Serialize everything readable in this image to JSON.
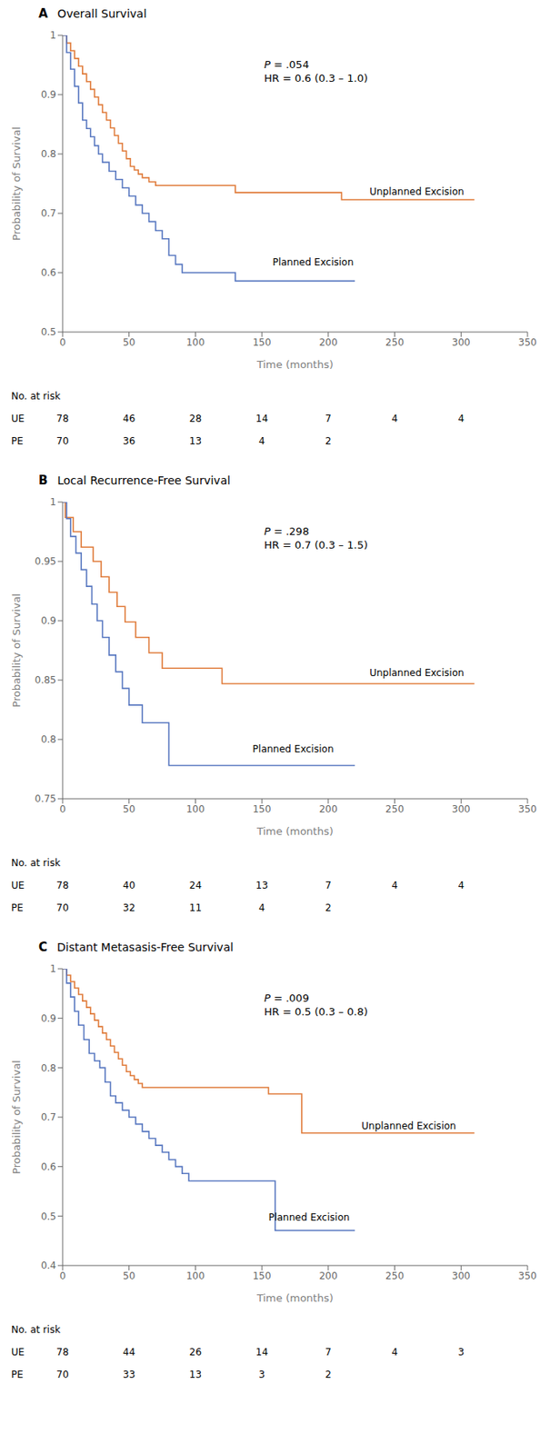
{
  "chart_data": [
    {
      "type": "line",
      "panel_label": "A",
      "title": "Overall Survival",
      "x_label": "Time (months)",
      "y_label": "Probability of Survival",
      "line_style": "step",
      "xlim": [
        0,
        350
      ],
      "xticks": [
        0,
        50,
        100,
        150,
        200,
        250,
        300,
        350
      ],
      "ylim": [
        0.5,
        1.0
      ],
      "yticks": [
        0.5,
        0.6,
        0.7,
        0.8,
        0.9,
        1
      ],
      "annotations": [
        "P = .054",
        "HR = 0.6 (0.3 – 1.0)"
      ],
      "series": [
        {
          "name": "Unplanned Excision",
          "color": "#E07B3A",
          "label_x": 228,
          "label_y": 0.737,
          "x": [
            0,
            3,
            6,
            9,
            12,
            15,
            18,
            21,
            24,
            27,
            30,
            33,
            36,
            39,
            42,
            45,
            48,
            51,
            54,
            57,
            60,
            65,
            70,
            75,
            80,
            90,
            100,
            110,
            120,
            130,
            140,
            150,
            160,
            170,
            180,
            190,
            200,
            210,
            220,
            310
          ],
          "values": [
            1.0,
            0.987,
            0.974,
            0.961,
            0.948,
            0.935,
            0.922,
            0.909,
            0.896,
            0.883,
            0.87,
            0.857,
            0.844,
            0.831,
            0.818,
            0.805,
            0.792,
            0.779,
            0.773,
            0.766,
            0.76,
            0.753,
            0.747,
            0.747,
            0.747,
            0.747,
            0.747,
            0.747,
            0.747,
            0.735,
            0.735,
            0.735,
            0.735,
            0.735,
            0.735,
            0.735,
            0.735,
            0.723,
            0.723,
            0.723
          ]
        },
        {
          "name": "Planned Excision",
          "color": "#5777C0",
          "label_x": 155,
          "label_y": 0.618,
          "x": [
            0,
            3,
            6,
            9,
            12,
            15,
            18,
            21,
            24,
            27,
            30,
            35,
            40,
            45,
            50,
            55,
            60,
            65,
            70,
            75,
            80,
            85,
            90,
            100,
            110,
            120,
            130,
            220
          ],
          "values": [
            1.0,
            0.971,
            0.943,
            0.914,
            0.886,
            0.857,
            0.843,
            0.829,
            0.814,
            0.8,
            0.786,
            0.771,
            0.757,
            0.743,
            0.729,
            0.714,
            0.7,
            0.686,
            0.671,
            0.657,
            0.629,
            0.614,
            0.6,
            0.6,
            0.6,
            0.6,
            0.586,
            0.586
          ]
        }
      ],
      "risk_table": {
        "title": "No. at risk",
        "x": [
          0,
          50,
          100,
          150,
          200,
          250,
          300
        ],
        "rows": [
          {
            "name": "UE",
            "values": [
              78,
              46,
              28,
              14,
              7,
              4,
              4
            ]
          },
          {
            "name": "PE",
            "values": [
              70,
              36,
              13,
              4,
              2,
              null,
              null
            ]
          }
        ]
      }
    },
    {
      "type": "line",
      "panel_label": "B",
      "title": "Local Recurrence-Free Survival",
      "x_label": "Time (months)",
      "y_label": "Probability of Survival",
      "line_style": "step",
      "xlim": [
        0,
        350
      ],
      "xticks": [
        0,
        50,
        100,
        150,
        200,
        250,
        300,
        350
      ],
      "ylim": [
        0.75,
        1.0
      ],
      "yticks": [
        0.75,
        0.8,
        0.85,
        0.9,
        0.95,
        1
      ],
      "annotations": [
        "P = .298",
        "HR = 0.7 (0.3 – 1.5)"
      ],
      "series": [
        {
          "name": "Unplanned Excision",
          "color": "#E07B3A",
          "label_x": 228,
          "label_y": 0.856,
          "x": [
            0,
            2,
            5,
            8,
            11,
            14,
            17,
            20,
            23,
            26,
            29,
            32,
            35,
            38,
            41,
            44,
            47,
            50,
            55,
            60,
            65,
            70,
            75,
            80,
            90,
            100,
            110,
            120,
            130,
            140,
            150,
            165,
            220,
            310
          ],
          "values": [
            1.0,
            0.987,
            0.987,
            0.975,
            0.975,
            0.962,
            0.962,
            0.962,
            0.95,
            0.95,
            0.937,
            0.937,
            0.924,
            0.924,
            0.912,
            0.912,
            0.899,
            0.899,
            0.886,
            0.886,
            0.873,
            0.873,
            0.86,
            0.86,
            0.86,
            0.86,
            0.86,
            0.847,
            0.847,
            0.847,
            0.847,
            0.847,
            0.847,
            0.847
          ]
        },
        {
          "name": "Planned Excision",
          "color": "#5777C0",
          "label_x": 140,
          "label_y": 0.792,
          "x": [
            0,
            3,
            6,
            10,
            14,
            18,
            22,
            26,
            30,
            35,
            40,
            45,
            50,
            55,
            60,
            65,
            70,
            75,
            80,
            85,
            90,
            100,
            110,
            120,
            220
          ],
          "values": [
            1.0,
            0.986,
            0.971,
            0.957,
            0.943,
            0.929,
            0.914,
            0.9,
            0.886,
            0.871,
            0.857,
            0.843,
            0.829,
            0.829,
            0.814,
            0.814,
            0.814,
            0.814,
            0.778,
            0.778,
            0.778,
            0.778,
            0.778,
            0.778,
            0.778
          ]
        }
      ],
      "risk_table": {
        "title": "No. at risk",
        "x": [
          0,
          50,
          100,
          150,
          200,
          250,
          300
        ],
        "rows": [
          {
            "name": "UE",
            "values": [
              78,
              40,
              24,
              13,
              7,
              4,
              4
            ]
          },
          {
            "name": "PE",
            "values": [
              70,
              32,
              11,
              4,
              2,
              null,
              null
            ]
          }
        ]
      }
    },
    {
      "type": "line",
      "panel_label": "C",
      "title": "Distant Metasasis-Free Survival",
      "x_label": "Time (months)",
      "y_label": "Probability of Survival",
      "line_style": "step",
      "xlim": [
        0,
        350
      ],
      "xticks": [
        0,
        50,
        100,
        150,
        200,
        250,
        300,
        350
      ],
      "ylim": [
        0.4,
        1.0
      ],
      "yticks": [
        0.4,
        0.5,
        0.6,
        0.7,
        0.8,
        0.9,
        1
      ],
      "annotations": [
        "P = .009",
        "HR = 0.5 (0.3 – 0.8)"
      ],
      "series": [
        {
          "name": "Unplanned Excision",
          "color": "#E07B3A",
          "label_x": 222,
          "label_y": 0.682,
          "x": [
            0,
            3,
            6,
            9,
            12,
            15,
            18,
            21,
            24,
            27,
            30,
            33,
            36,
            39,
            42,
            45,
            48,
            51,
            54,
            57,
            60,
            63,
            66,
            69,
            72,
            75,
            80,
            85,
            90,
            95,
            100,
            110,
            120,
            130,
            140,
            150,
            155,
            160,
            165,
            170,
            180,
            185,
            220,
            310
          ],
          "values": [
            1.0,
            0.987,
            0.974,
            0.961,
            0.948,
            0.935,
            0.922,
            0.909,
            0.896,
            0.883,
            0.87,
            0.857,
            0.844,
            0.831,
            0.818,
            0.805,
            0.792,
            0.784,
            0.776,
            0.768,
            0.76,
            0.76,
            0.76,
            0.76,
            0.76,
            0.76,
            0.76,
            0.76,
            0.76,
            0.76,
            0.76,
            0.76,
            0.76,
            0.76,
            0.76,
            0.76,
            0.747,
            0.747,
            0.747,
            0.747,
            0.668,
            0.668,
            0.668,
            0.668
          ]
        },
        {
          "name": "Planned Excision",
          "color": "#5777C0",
          "label_x": 152,
          "label_y": 0.498,
          "x": [
            0,
            3,
            6,
            9,
            12,
            16,
            20,
            24,
            28,
            32,
            36,
            40,
            45,
            50,
            55,
            60,
            65,
            70,
            75,
            80,
            85,
            90,
            95,
            100,
            110,
            115,
            120,
            130,
            140,
            150,
            160,
            220
          ],
          "values": [
            1.0,
            0.971,
            0.943,
            0.914,
            0.886,
            0.857,
            0.829,
            0.814,
            0.8,
            0.771,
            0.743,
            0.729,
            0.714,
            0.7,
            0.686,
            0.671,
            0.657,
            0.643,
            0.629,
            0.614,
            0.6,
            0.586,
            0.571,
            0.571,
            0.571,
            0.571,
            0.571,
            0.571,
            0.571,
            0.571,
            0.471,
            0.471
          ]
        }
      ],
      "risk_table": {
        "title": "No. at risk",
        "x": [
          0,
          50,
          100,
          150,
          200,
          250,
          300
        ],
        "rows": [
          {
            "name": "UE",
            "values": [
              78,
              44,
              26,
              14,
              7,
              4,
              3
            ]
          },
          {
            "name": "PE",
            "values": [
              70,
              33,
              13,
              3,
              2,
              null,
              null
            ]
          }
        ]
      }
    }
  ]
}
